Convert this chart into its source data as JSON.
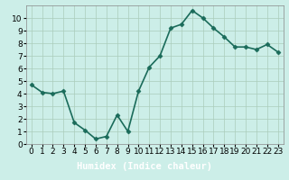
{
  "x": [
    0,
    1,
    2,
    3,
    4,
    5,
    6,
    7,
    8,
    9,
    10,
    11,
    12,
    13,
    14,
    15,
    16,
    17,
    18,
    19,
    20,
    21,
    22,
    23
  ],
  "y": [
    4.7,
    4.1,
    4.0,
    4.2,
    1.7,
    1.1,
    0.4,
    0.6,
    2.3,
    1.0,
    4.2,
    6.1,
    7.0,
    9.2,
    9.5,
    10.6,
    10.0,
    9.2,
    8.5,
    7.7,
    7.7,
    7.5,
    7.9,
    7.3
  ],
  "line_color": "#1a6b5a",
  "marker": "D",
  "marker_size": 2.5,
  "background_color": "#cceee8",
  "grid_color": "#aaccbb",
  "xlabel": "Humidex (Indice chaleur)",
  "xlim": [
    -0.5,
    23.5
  ],
  "ylim": [
    0,
    11
  ],
  "yticks": [
    0,
    1,
    2,
    3,
    4,
    5,
    6,
    7,
    8,
    9,
    10
  ],
  "xticks": [
    0,
    1,
    2,
    3,
    4,
    5,
    6,
    7,
    8,
    9,
    10,
    11,
    12,
    13,
    14,
    15,
    16,
    17,
    18,
    19,
    20,
    21,
    22,
    23
  ],
  "xlabel_fontsize": 7.5,
  "tick_fontsize": 6.5,
  "linewidth": 1.2,
  "bottom_bar_color": "#2b5f6e",
  "spine_color": "#888888"
}
